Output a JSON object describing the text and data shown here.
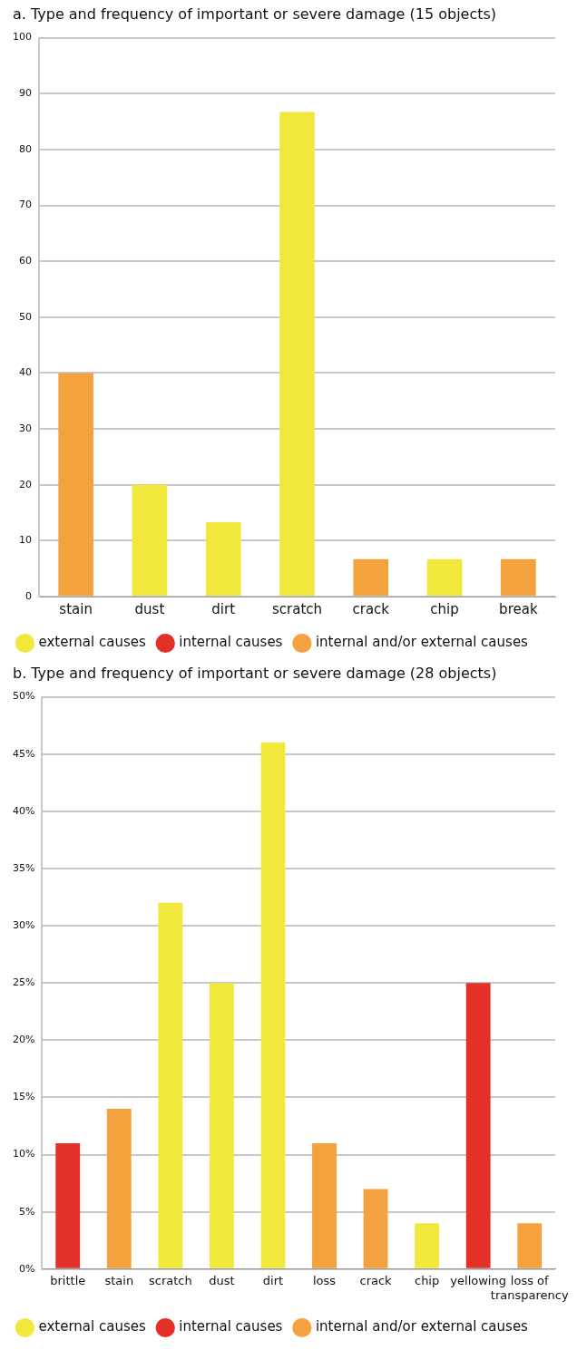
{
  "chart_data": [
    {
      "type": "bar",
      "title": "a. Type and frequency of important or severe damage (15 objects)",
      "categories": [
        "stain",
        "dust",
        "dirt",
        "scratch",
        "crack",
        "chip",
        "break"
      ],
      "series": [
        {
          "name": "external causes",
          "color": "#f2e83c",
          "values": [
            null,
            20,
            13.3,
            86.7,
            null,
            6.7,
            null
          ]
        },
        {
          "name": "internal causes",
          "color": "#e3312a",
          "values": [
            null,
            null,
            null,
            null,
            null,
            null,
            null
          ]
        },
        {
          "name": "internal and/or external causes",
          "color": "#f4a23e",
          "values": [
            40,
            null,
            null,
            null,
            6.7,
            null,
            6.7
          ]
        }
      ],
      "ylim": [
        0,
        100
      ],
      "yticks": [
        0,
        10,
        20,
        30,
        40,
        50,
        60,
        70,
        80,
        90,
        100
      ],
      "grid": "y",
      "legend": "bottom"
    },
    {
      "type": "bar",
      "title": "b. Type and frequency of important or severe damage (28 objects)",
      "categories": [
        "brittle",
        "stain",
        "scratch",
        "dust",
        "dirt",
        "loss",
        "crack",
        "chip",
        "yellowing",
        "loss of transparency"
      ],
      "series": [
        {
          "name": "external causes",
          "color": "#f2e83c",
          "values": [
            null,
            null,
            32,
            25,
            46,
            null,
            null,
            4,
            null,
            null
          ]
        },
        {
          "name": "internal causes",
          "color": "#e3312a",
          "values": [
            11,
            null,
            null,
            null,
            null,
            null,
            null,
            null,
            25,
            null
          ]
        },
        {
          "name": "internal and/or external causes",
          "color": "#f4a23e",
          "values": [
            null,
            14,
            null,
            null,
            null,
            11,
            7,
            null,
            null,
            4
          ]
        }
      ],
      "ylim": [
        0,
        50
      ],
      "yticks": [
        {
          "value": 0,
          "label": "0%"
        },
        {
          "value": 5,
          "label": "5%"
        },
        {
          "value": 10,
          "label": "10%"
        },
        {
          "value": 15,
          "label": "15%"
        },
        {
          "value": 20,
          "label": "20%"
        },
        {
          "value": 25,
          "label": "25%"
        },
        {
          "value": 30,
          "label": "30%"
        },
        {
          "value": 35,
          "label": "35%"
        },
        {
          "value": 40,
          "label": "40%"
        },
        {
          "value": 45,
          "label": "45%"
        },
        {
          "value": 50,
          "label": "50%"
        }
      ],
      "grid": "y",
      "legend": "bottom"
    }
  ]
}
